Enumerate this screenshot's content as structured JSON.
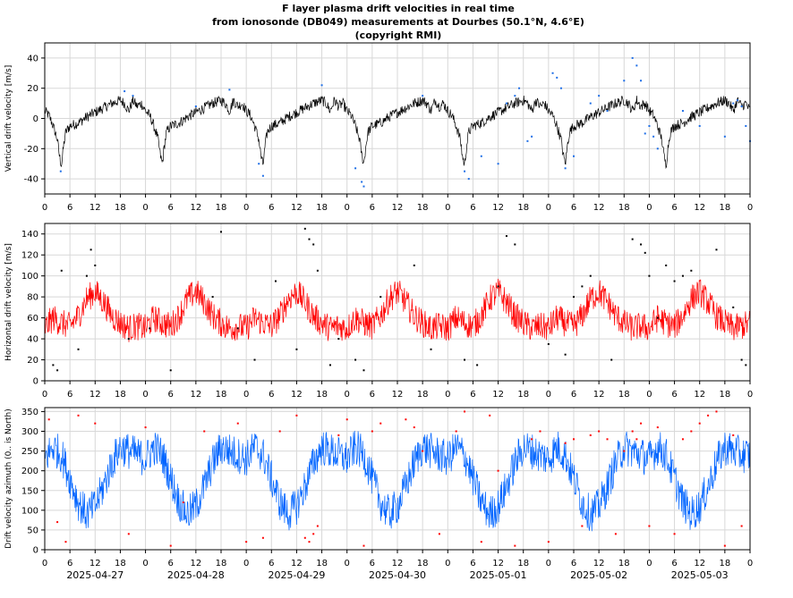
{
  "title_lines": [
    "F layer plasma drift velocities in real time",
    "from ionosonde (DB049) measurements at Dourbes (50.1°N, 4.6°E)",
    "(copyright RMI)"
  ],
  "x_hour_labels": [
    "0",
    "6",
    "12",
    "18",
    "0",
    "6",
    "12",
    "18",
    "0",
    "6",
    "12",
    "18",
    "0",
    "6",
    "12",
    "18",
    "0",
    "6",
    "12",
    "18",
    "0",
    "6",
    "12",
    "18",
    "0",
    "6",
    "12",
    "18",
    "0"
  ],
  "date_labels": [
    "2025-04-27",
    "2025-04-28",
    "2025-04-29",
    "2025-04-30",
    "2025-05-01",
    "2025-05-02",
    "2025-05-03"
  ],
  "colors": {
    "vertical_line": "#000000",
    "vertical_points": "#1e6ee6",
    "horizontal_line": "#ff0000",
    "horizontal_points": "#000000",
    "azimuth_line": "#0064ff",
    "azimuth_points": "#ff0000",
    "grid": "#d8d8d8"
  },
  "chart_data": [
    {
      "type": "line",
      "ylabel": "Vertical drift velocity [m/s]",
      "x_unit": "hours since 2025-04-27 00:00",
      "xlim": [
        0,
        168
      ],
      "ylim": [
        -50,
        50
      ],
      "yticks": [
        -40,
        -20,
        0,
        20,
        40
      ],
      "grid": true,
      "series": [
        {
          "kind": "line",
          "x": [
            0,
            1,
            2,
            3,
            3.5,
            4,
            4.5,
            5,
            6,
            8,
            10,
            12,
            14,
            16,
            18,
            19,
            20,
            21,
            22,
            23,
            24,
            25,
            26,
            27,
            27.5,
            28,
            28.5,
            29,
            30,
            32,
            34,
            36,
            38,
            40,
            42,
            43,
            44,
            45,
            46,
            47,
            48,
            49,
            50,
            51,
            51.5,
            52,
            52.5,
            53,
            54,
            56,
            58,
            60,
            62,
            64,
            66,
            67,
            68,
            69,
            70,
            71,
            72,
            73,
            74,
            75,
            75.5,
            76,
            76.5,
            77,
            78,
            80,
            82,
            84,
            86,
            88,
            90,
            91,
            92,
            93,
            94,
            95,
            96,
            97,
            98,
            99,
            99.5,
            100,
            100.5,
            101,
            102,
            104,
            106,
            108,
            110,
            112,
            114,
            115,
            116,
            117,
            118,
            119,
            120,
            121,
            122,
            123,
            123.5,
            124,
            124.5,
            125,
            126,
            128,
            130,
            132,
            134,
            136,
            138,
            139,
            140,
            141,
            142,
            143,
            144,
            145,
            146,
            147,
            147.5,
            148,
            148.5,
            149,
            150,
            152,
            154,
            156,
            158,
            160,
            162,
            163,
            164,
            165,
            166,
            167,
            168
          ],
          "values": [
            5,
            2,
            -5,
            -14,
            -25,
            -31,
            -18,
            -9,
            -5,
            -3,
            1,
            4,
            7,
            10,
            12,
            10,
            5,
            12,
            8,
            10,
            5,
            2,
            -5,
            -14,
            -24,
            -30,
            -18,
            -9,
            -5,
            -3,
            1,
            4,
            7,
            10,
            12,
            10,
            5,
            12,
            8,
            10,
            5,
            2,
            -5,
            -14,
            -25,
            -31,
            -18,
            -9,
            -5,
            -3,
            1,
            4,
            7,
            10,
            12,
            10,
            5,
            12,
            8,
            10,
            5,
            2,
            -5,
            -14,
            -24,
            -30,
            -18,
            -9,
            -5,
            -3,
            1,
            4,
            7,
            10,
            12,
            10,
            5,
            12,
            8,
            10,
            5,
            2,
            -5,
            -14,
            -25,
            -31,
            -18,
            -9,
            -5,
            -3,
            1,
            4,
            7,
            10,
            12,
            10,
            5,
            12,
            8,
            10,
            5,
            2,
            -5,
            -14,
            -24,
            -30,
            -18,
            -9,
            -5,
            -3,
            1,
            4,
            7,
            10,
            12,
            10,
            5,
            12,
            8,
            10,
            5,
            2,
            -5,
            -14,
            -25,
            -31,
            -18,
            -9,
            -5,
            -3,
            1,
            4,
            7,
            10,
            12,
            10,
            5,
            12,
            8,
            10,
            5
          ]
        },
        {
          "kind": "points",
          "x": [
            3.8,
            19,
            21,
            36,
            44,
            51,
            52,
            66,
            74,
            75.5,
            76,
            90,
            100,
            101,
            104,
            108,
            110,
            112,
            113,
            115,
            116,
            121,
            122,
            123,
            124,
            126,
            130,
            132,
            134,
            138,
            140,
            141,
            142,
            143,
            144,
            145,
            146,
            152,
            156,
            162,
            164,
            165,
            166,
            167,
            168
          ],
          "values": [
            -35,
            18,
            15,
            8,
            19,
            -30,
            -38,
            22,
            -33,
            -42,
            -45,
            15,
            -35,
            -40,
            -25,
            -30,
            10,
            15,
            20,
            -15,
            -12,
            30,
            27,
            20,
            -33,
            -25,
            10,
            15,
            5,
            25,
            40,
            35,
            25,
            -10,
            -5,
            -12,
            -20,
            5,
            -5,
            -12,
            10,
            12,
            8,
            -5,
            -15
          ]
        }
      ]
    },
    {
      "type": "line",
      "ylabel": "Horizontal drift velocity [m/s]",
      "x_unit": "hours since 2025-04-27 00:00",
      "xlim": [
        0,
        168
      ],
      "ylim": [
        0,
        150
      ],
      "yticks": [
        0,
        20,
        40,
        60,
        80,
        100,
        120,
        140
      ],
      "grid": true,
      "series": [
        {
          "kind": "line",
          "x": [
            0,
            2,
            4,
            6,
            8,
            10,
            12,
            14,
            16,
            18,
            20,
            22,
            24,
            26,
            28,
            30,
            32,
            34,
            36,
            38,
            40,
            42,
            44,
            46,
            48,
            50,
            52,
            54,
            56,
            58,
            60,
            62,
            64,
            66,
            68,
            70,
            72,
            74,
            76,
            78,
            80,
            82,
            84,
            86,
            88,
            90,
            92,
            94,
            96,
            98,
            100,
            102,
            104,
            106,
            108,
            110,
            112,
            114,
            116,
            118,
            120,
            122,
            124,
            126,
            128,
            130,
            132,
            134,
            136,
            138,
            140,
            142,
            144,
            146,
            148,
            150,
            152,
            154,
            156,
            158,
            160,
            162,
            164,
            166,
            168
          ],
          "values": [
            50,
            60,
            55,
            52,
            62,
            78,
            85,
            75,
            62,
            55,
            50,
            52,
            50,
            60,
            55,
            52,
            62,
            78,
            85,
            75,
            62,
            55,
            50,
            52,
            50,
            60,
            55,
            52,
            62,
            78,
            85,
            75,
            62,
            55,
            50,
            52,
            50,
            60,
            55,
            52,
            62,
            78,
            85,
            75,
            62,
            55,
            50,
            52,
            50,
            60,
            55,
            52,
            62,
            78,
            85,
            75,
            62,
            55,
            50,
            52,
            50,
            60,
            55,
            52,
            62,
            78,
            85,
            75,
            62,
            55,
            50,
            52,
            50,
            60,
            55,
            52,
            62,
            78,
            85,
            75,
            62,
            55,
            50,
            52,
            55
          ]
        },
        {
          "kind": "points",
          "x": [
            2,
            3,
            4,
            8,
            10,
            11,
            12,
            20,
            25,
            30,
            40,
            42,
            46,
            50,
            55,
            60,
            62,
            63,
            64,
            65,
            68,
            70,
            74,
            76,
            80,
            88,
            92,
            100,
            103,
            108,
            110,
            112,
            120,
            124,
            126,
            128,
            130,
            135,
            140,
            142,
            143,
            144,
            146,
            148,
            150,
            152,
            154,
            160,
            164,
            166,
            167
          ],
          "values": [
            15,
            10,
            105,
            30,
            100,
            125,
            110,
            40,
            50,
            10,
            80,
            142,
            50,
            20,
            95,
            30,
            145,
            135,
            130,
            105,
            15,
            40,
            20,
            10,
            80,
            110,
            30,
            20,
            15,
            90,
            138,
            130,
            35,
            25,
            80,
            90,
            100,
            20,
            135,
            130,
            122,
            100,
            60,
            110,
            95,
            100,
            105,
            125,
            70,
            20,
            15
          ]
        }
      ]
    },
    {
      "type": "line",
      "ylabel": "Drift velocity azimuth (0.. is North)",
      "x_unit": "hours since 2025-04-27 00:00",
      "xlim": [
        0,
        168
      ],
      "ylim": [
        0,
        360
      ],
      "yticks": [
        0,
        50,
        100,
        150,
        200,
        250,
        300,
        350
      ],
      "grid": true,
      "series": [
        {
          "kind": "line",
          "x": [
            0,
            2,
            4,
            6,
            8,
            10,
            12,
            14,
            16,
            18,
            20,
            22,
            24,
            26,
            28,
            30,
            32,
            34,
            36,
            38,
            40,
            42,
            44,
            46,
            48,
            50,
            52,
            54,
            56,
            58,
            60,
            62,
            64,
            66,
            68,
            70,
            72,
            74,
            76,
            78,
            80,
            82,
            84,
            86,
            88,
            90,
            92,
            94,
            96,
            98,
            100,
            102,
            104,
            106,
            108,
            110,
            112,
            114,
            116,
            118,
            120,
            122,
            124,
            126,
            128,
            130,
            132,
            134,
            136,
            138,
            140,
            142,
            144,
            146,
            148,
            150,
            152,
            154,
            156,
            158,
            160,
            162,
            164,
            166,
            168
          ],
          "values": [
            230,
            260,
            240,
            180,
            120,
            90,
            110,
            160,
            220,
            260,
            250,
            240,
            230,
            260,
            240,
            180,
            120,
            90,
            110,
            160,
            220,
            260,
            250,
            240,
            230,
            260,
            240,
            180,
            120,
            90,
            110,
            160,
            220,
            260,
            250,
            240,
            230,
            260,
            240,
            180,
            120,
            90,
            110,
            160,
            220,
            260,
            250,
            240,
            230,
            260,
            240,
            180,
            120,
            90,
            110,
            160,
            220,
            260,
            250,
            240,
            230,
            260,
            240,
            180,
            120,
            90,
            110,
            160,
            220,
            260,
            250,
            240,
            230,
            260,
            240,
            180,
            120,
            90,
            110,
            160,
            220,
            260,
            250,
            240,
            240
          ]
        },
        {
          "kind": "points",
          "x": [
            1,
            3,
            5,
            8,
            12,
            20,
            24,
            30,
            33,
            38,
            46,
            48,
            52,
            56,
            60,
            62,
            63,
            64,
            65,
            70,
            72,
            76,
            78,
            80,
            86,
            88,
            90,
            94,
            98,
            100,
            104,
            106,
            108,
            112,
            116,
            118,
            120,
            124,
            126,
            128,
            130,
            132,
            134,
            136,
            138,
            140,
            141,
            142,
            144,
            146,
            150,
            152,
            154,
            156,
            158,
            160,
            162,
            164,
            166
          ],
          "values": [
            330,
            70,
            20,
            340,
            320,
            40,
            310,
            10,
            120,
            300,
            320,
            20,
            30,
            300,
            340,
            30,
            20,
            40,
            60,
            290,
            330,
            10,
            300,
            320,
            330,
            310,
            250,
            40,
            300,
            350,
            20,
            340,
            200,
            10,
            280,
            300,
            20,
            270,
            280,
            60,
            290,
            300,
            280,
            40,
            250,
            300,
            280,
            320,
            60,
            310,
            40,
            280,
            300,
            320,
            340,
            350,
            10,
            290,
            60
          ]
        }
      ]
    }
  ]
}
